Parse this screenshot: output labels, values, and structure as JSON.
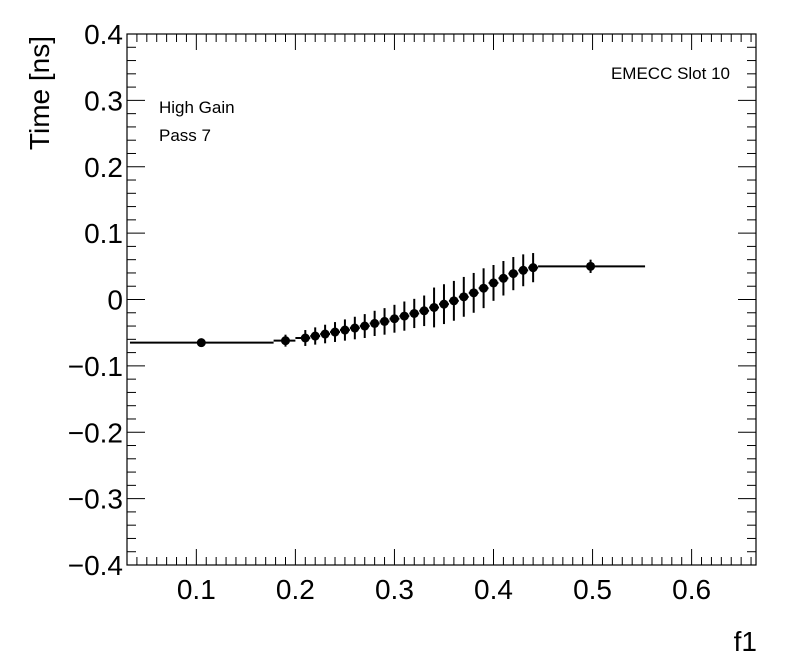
{
  "chart_data": {
    "type": "scatter",
    "title": "",
    "xlabel": "f1",
    "ylabel": "Time [ns]",
    "xlim": [
      0.03,
      0.665
    ],
    "ylim": [
      -0.4,
      0.4
    ],
    "x_ticks": [
      0.1,
      0.2,
      0.3,
      0.4,
      0.5,
      0.6
    ],
    "x_tick_labels": [
      "0.1",
      "0.2",
      "0.3",
      "0.4",
      "0.5",
      "0.6"
    ],
    "y_ticks": [
      -0.4,
      -0.3,
      -0.2,
      -0.1,
      0,
      0.1,
      0.2,
      0.3,
      0.4
    ],
    "y_tick_labels": [
      "−0.4",
      "−0.3",
      "−0.2",
      "−0.1",
      "0",
      "0.1",
      "0.2",
      "0.3",
      "0.4"
    ],
    "grid": false,
    "color": "#000000",
    "annotations": [
      "High Gain",
      "Pass 7",
      "EMECC Slot 10"
    ],
    "series": [
      {
        "points": [
          {
            "x": 0.105,
            "y": -0.065,
            "xlo": 0.033,
            "xhi": 0.178,
            "err": 0.004
          },
          {
            "x": 0.19,
            "y": -0.062,
            "xlo": 0.178,
            "xhi": 0.2,
            "err": 0.009
          },
          {
            "x": 0.21,
            "y": -0.058,
            "xlo": 0.2,
            "xhi": 0.215,
            "err": 0.012
          },
          {
            "x": 0.22,
            "y": -0.055,
            "xlo": 0.215,
            "xhi": 0.225,
            "err": 0.013
          },
          {
            "x": 0.23,
            "y": -0.052,
            "xlo": 0.225,
            "xhi": 0.235,
            "err": 0.014
          },
          {
            "x": 0.24,
            "y": -0.049,
            "xlo": 0.235,
            "xhi": 0.245,
            "err": 0.015
          },
          {
            "x": 0.25,
            "y": -0.046,
            "xlo": 0.245,
            "xhi": 0.255,
            "err": 0.016
          },
          {
            "x": 0.26,
            "y": -0.043,
            "xlo": 0.255,
            "xhi": 0.265,
            "err": 0.017
          },
          {
            "x": 0.27,
            "y": -0.04,
            "xlo": 0.265,
            "xhi": 0.275,
            "err": 0.018
          },
          {
            "x": 0.28,
            "y": -0.036,
            "xlo": 0.275,
            "xhi": 0.285,
            "err": 0.019
          },
          {
            "x": 0.29,
            "y": -0.033,
            "xlo": 0.285,
            "xhi": 0.295,
            "err": 0.02
          },
          {
            "x": 0.3,
            "y": -0.029,
            "xlo": 0.295,
            "xhi": 0.305,
            "err": 0.021
          },
          {
            "x": 0.31,
            "y": -0.025,
            "xlo": 0.305,
            "xhi": 0.315,
            "err": 0.022
          },
          {
            "x": 0.32,
            "y": -0.021,
            "xlo": 0.315,
            "xhi": 0.325,
            "err": 0.022
          },
          {
            "x": 0.33,
            "y": -0.017,
            "xlo": 0.325,
            "xhi": 0.335,
            "err": 0.023
          },
          {
            "x": 0.34,
            "y": -0.012,
            "xlo": 0.335,
            "xhi": 0.345,
            "err": 0.03
          },
          {
            "x": 0.35,
            "y": -0.007,
            "xlo": 0.345,
            "xhi": 0.355,
            "err": 0.03
          },
          {
            "x": 0.36,
            "y": -0.002,
            "xlo": 0.355,
            "xhi": 0.365,
            "err": 0.03
          },
          {
            "x": 0.37,
            "y": 0.004,
            "xlo": 0.365,
            "xhi": 0.375,
            "err": 0.03
          },
          {
            "x": 0.38,
            "y": 0.01,
            "xlo": 0.375,
            "xhi": 0.385,
            "err": 0.03
          },
          {
            "x": 0.39,
            "y": 0.017,
            "xlo": 0.385,
            "xhi": 0.395,
            "err": 0.03
          },
          {
            "x": 0.4,
            "y": 0.025,
            "xlo": 0.395,
            "xhi": 0.405,
            "err": 0.027
          },
          {
            "x": 0.41,
            "y": 0.032,
            "xlo": 0.405,
            "xhi": 0.415,
            "err": 0.026
          },
          {
            "x": 0.42,
            "y": 0.039,
            "xlo": 0.415,
            "xhi": 0.425,
            "err": 0.025
          },
          {
            "x": 0.43,
            "y": 0.044,
            "xlo": 0.425,
            "xhi": 0.435,
            "err": 0.024
          },
          {
            "x": 0.44,
            "y": 0.048,
            "xlo": 0.435,
            "xhi": 0.445,
            "err": 0.022
          },
          {
            "x": 0.498,
            "y": 0.05,
            "xlo": 0.445,
            "xhi": 0.553,
            "err": 0.01
          }
        ]
      }
    ]
  }
}
